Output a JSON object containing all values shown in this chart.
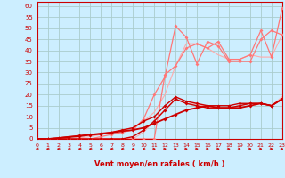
{
  "xlabel": "Vent moyen/en rafales ( km/h )",
  "background_color": "#cceeff",
  "grid_color": "#aacccc",
  "x": [
    0,
    1,
    2,
    3,
    4,
    5,
    6,
    7,
    8,
    9,
    10,
    11,
    12,
    13,
    14,
    15,
    16,
    17,
    18,
    19,
    20,
    21,
    22,
    23
  ],
  "line_pink1_y": [
    0,
    0,
    0,
    0,
    0,
    0,
    0,
    0,
    0,
    0,
    0,
    0,
    29,
    33,
    41,
    43,
    41,
    44,
    36,
    36,
    38,
    49,
    37,
    59
  ],
  "line_pink2_y": [
    0,
    0,
    0,
    0,
    0,
    0,
    1,
    2,
    3,
    4,
    9,
    20,
    28,
    51,
    46,
    34,
    44,
    42,
    35,
    35,
    35,
    45,
    49,
    47
  ],
  "line_light1_y": [
    0,
    0,
    0,
    0,
    0.5,
    1,
    2,
    3,
    4,
    5,
    8,
    12,
    20,
    33,
    43,
    43,
    41,
    38,
    36,
    36,
    38,
    37,
    37,
    47
  ],
  "line_light2_y": [
    0,
    0,
    0,
    0,
    0,
    0,
    0,
    0,
    0,
    0,
    3,
    8,
    13,
    18,
    16,
    16,
    14,
    14,
    14,
    15,
    16,
    16,
    15,
    19
  ],
  "line_dark1_y": [
    0,
    0,
    0.5,
    1,
    1.5,
    2,
    2.5,
    3,
    4,
    5,
    8,
    10,
    15,
    19,
    17,
    16,
    15,
    15,
    15,
    16,
    16,
    16,
    15,
    18
  ],
  "line_dark2_y": [
    0,
    0,
    0.3,
    0.8,
    1.2,
    1.8,
    2.2,
    2.8,
    3.5,
    4,
    5,
    7,
    9,
    11,
    13,
    14,
    15,
    14,
    14,
    14,
    15,
    16,
    15,
    18
  ],
  "line_dark3_y": [
    0,
    0,
    0,
    0,
    0,
    0,
    0,
    0,
    0,
    1,
    4,
    8,
    13,
    18,
    16,
    15,
    14,
    14,
    14,
    15,
    16,
    16,
    15,
    18
  ],
  "wind_arrows_left": [
    0,
    1,
    2,
    3,
    4,
    5,
    6,
    7,
    8,
    9,
    10
  ],
  "wind_arrows_right": [
    11,
    12,
    13,
    14,
    15,
    16,
    17,
    18,
    19,
    20,
    21,
    22,
    23
  ],
  "ylim": [
    0,
    62
  ],
  "yticks": [
    0,
    5,
    10,
    15,
    20,
    25,
    30,
    35,
    40,
    45,
    50,
    55,
    60
  ],
  "xlim": [
    0,
    23
  ],
  "xticks": [
    0,
    1,
    2,
    3,
    4,
    5,
    6,
    7,
    8,
    9,
    10,
    11,
    12,
    13,
    14,
    15,
    16,
    17,
    18,
    19,
    20,
    21,
    22,
    23
  ],
  "color_dark_red": "#cc0000",
  "color_light_red": "#ffaaaa",
  "color_pink": "#ff7777"
}
